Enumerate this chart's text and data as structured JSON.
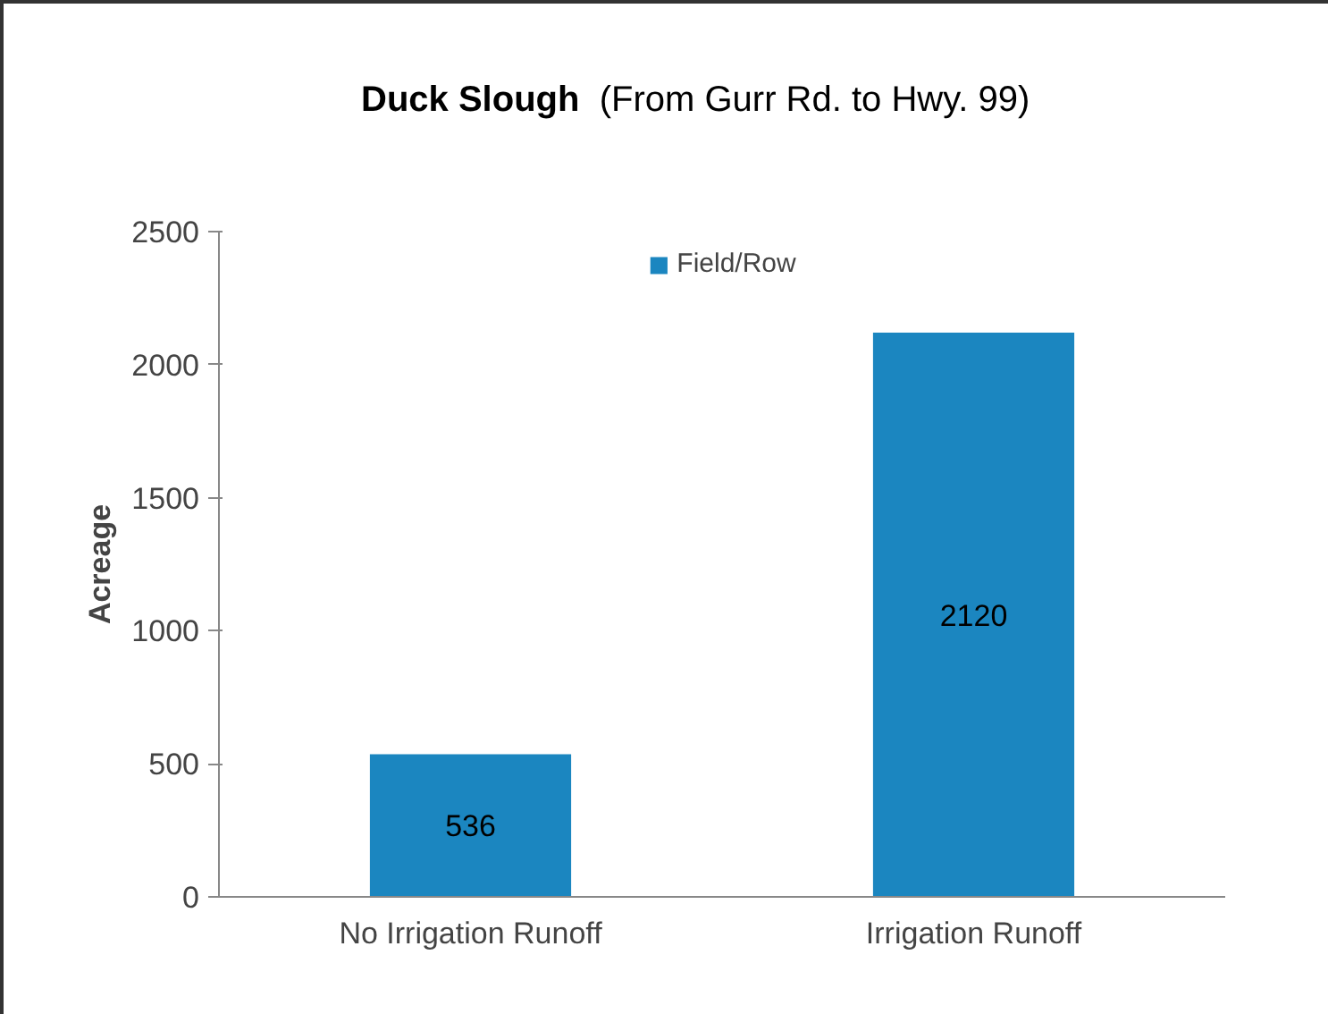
{
  "chart_data": {
    "type": "bar",
    "title": "Duck Slough",
    "subtitle": "(From Gurr Rd. to Hwy. 99)",
    "ylabel": "Acreage",
    "categories": [
      "No Irrigation Runoff",
      "Irrigation Runoff"
    ],
    "series": [
      {
        "name": "Field/Row",
        "color": "#1b86c0",
        "values": [
          536,
          2120
        ]
      }
    ],
    "ylim": [
      0,
      2500
    ],
    "yticks": [
      0,
      500,
      1000,
      1500,
      2000,
      2500
    ],
    "grid": false,
    "legend": "top",
    "data_labels": true
  }
}
